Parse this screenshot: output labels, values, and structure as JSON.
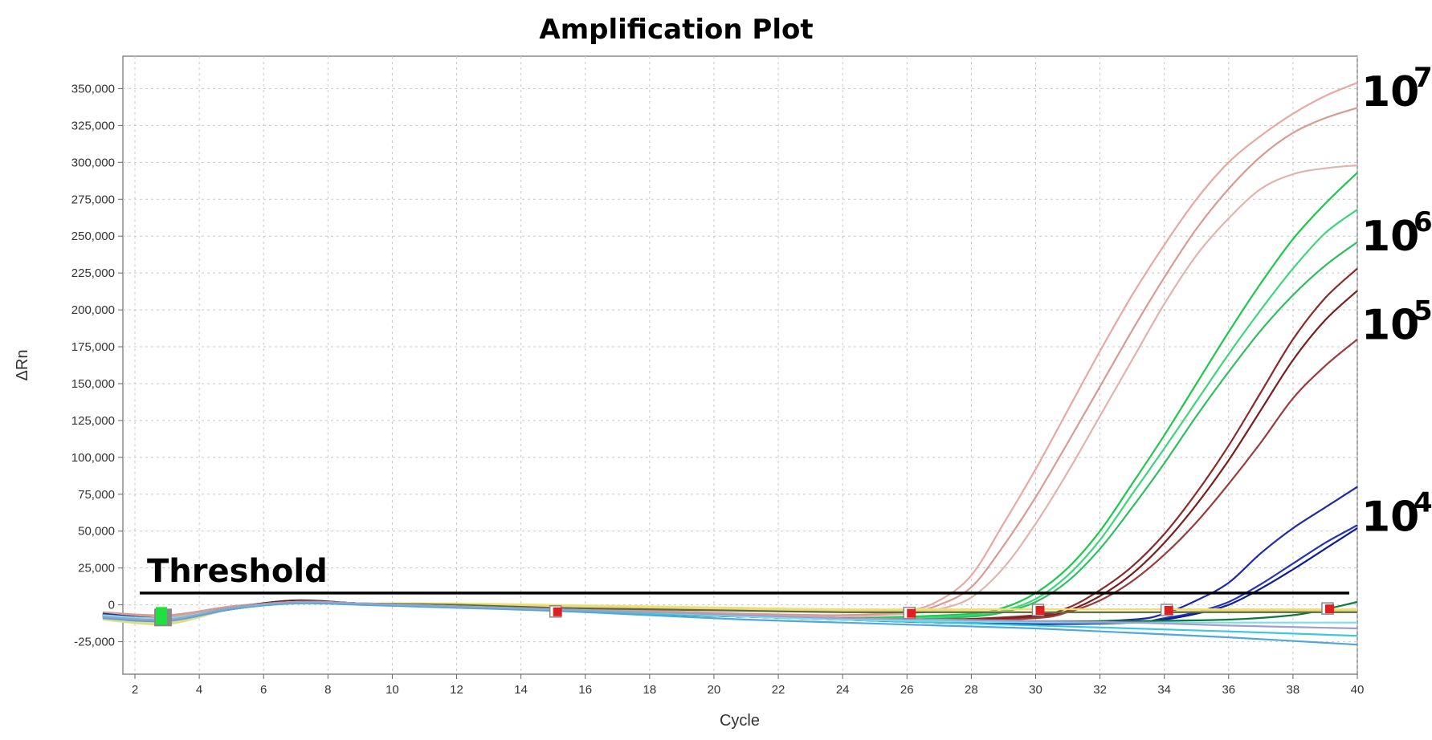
{
  "chart_data": {
    "type": "line",
    "title": "Amplification Plot",
    "xlabel": "Cycle",
    "ylabel": "ΔRn",
    "xlim": [
      1,
      40
    ],
    "ylim": [
      -47000,
      372000
    ],
    "x_ticks": [
      2,
      4,
      6,
      8,
      10,
      12,
      14,
      16,
      18,
      20,
      22,
      24,
      26,
      28,
      30,
      32,
      34,
      36,
      38,
      40
    ],
    "x_tick_labels": [
      "2",
      "4",
      "6",
      "8",
      "10",
      "12",
      "14",
      "16",
      "18",
      "20",
      "22",
      "24",
      "26",
      "28",
      "30",
      "32",
      "34",
      "36",
      "38",
      "40"
    ],
    "y_ticks": [
      -25000,
      0,
      25000,
      50000,
      75000,
      100000,
      125000,
      150000,
      175000,
      200000,
      225000,
      250000,
      275000,
      300000,
      325000,
      350000
    ],
    "y_tick_labels": [
      "-25,000",
      "0",
      "25,000",
      "50,000",
      "75,000",
      "100,000",
      "125,000",
      "150,000",
      "175,000",
      "200,000",
      "225,000",
      "250,000",
      "275,000",
      "300,000",
      "325,000",
      "350,000"
    ],
    "grid": true,
    "threshold": {
      "label": "Threshold",
      "value": 8000
    },
    "annotations": [
      {
        "base": "10",
        "exp": "7",
        "y": 348000
      },
      {
        "base": "10",
        "exp": "6",
        "y": 250000
      },
      {
        "base": "10",
        "exp": "5",
        "y": 190000
      },
      {
        "base": "10",
        "exp": "4",
        "y": 60000
      }
    ],
    "series": [
      {
        "color": "#e8a8a0",
        "x": [
          1,
          3,
          5,
          7,
          9,
          12,
          15,
          18,
          21,
          24,
          26,
          27,
          28,
          29,
          30,
          31,
          32,
          33,
          34,
          35,
          36,
          37,
          38,
          39,
          40
        ],
        "values": [
          -6000,
          -8000,
          -2000,
          2000,
          1000,
          0,
          -2000,
          -4000,
          -6000,
          -7000,
          -4000,
          3000,
          20000,
          55000,
          92000,
          132000,
          172000,
          210000,
          244000,
          275000,
          300000,
          318000,
          333000,
          345000,
          354000
        ]
      },
      {
        "color": "#d99a92",
        "x": [
          1,
          3,
          5,
          7,
          9,
          12,
          15,
          18,
          21,
          24,
          26,
          27,
          28,
          29,
          30,
          31,
          32,
          33,
          34,
          35,
          36,
          37,
          38,
          39,
          40
        ],
        "values": [
          -5000,
          -7000,
          -1000,
          2000,
          1000,
          0,
          -2000,
          -4000,
          -6000,
          -7000,
          -5000,
          0,
          12000,
          40000,
          73000,
          110000,
          148000,
          186000,
          222000,
          255000,
          282000,
          304000,
          320000,
          330000,
          337000
        ]
      },
      {
        "color": "#e2b2ac",
        "x": [
          1,
          3,
          5,
          7,
          9,
          12,
          15,
          18,
          21,
          24,
          26,
          27,
          28,
          29,
          30,
          31,
          32,
          33,
          34,
          35,
          36,
          37,
          38,
          39,
          40
        ],
        "values": [
          -7000,
          -9000,
          -2000,
          2000,
          1000,
          -1000,
          -3000,
          -5000,
          -7000,
          -8000,
          -6000,
          -3000,
          5000,
          25000,
          55000,
          90000,
          128000,
          166000,
          204000,
          237000,
          262000,
          282000,
          292000,
          296000,
          298000
        ]
      },
      {
        "color": "#1ec84a",
        "x": [
          1,
          3,
          5,
          7,
          9,
          12,
          15,
          18,
          21,
          24,
          26,
          28,
          29,
          30,
          31,
          32,
          33,
          34,
          35,
          36,
          37,
          38,
          39,
          40
        ],
        "values": [
          -6000,
          -9000,
          -2000,
          2000,
          1000,
          -1000,
          -3000,
          -6000,
          -8000,
          -9000,
          -8000,
          -6000,
          -2000,
          8000,
          25000,
          50000,
          82000,
          115000,
          150000,
          185000,
          218000,
          248000,
          272000,
          293000
        ]
      },
      {
        "color": "#3cd67a",
        "x": [
          1,
          3,
          5,
          7,
          9,
          12,
          15,
          18,
          21,
          24,
          26,
          28,
          29,
          30,
          31,
          32,
          33,
          34,
          35,
          36,
          37,
          38,
          39,
          40
        ],
        "values": [
          -7000,
          -10000,
          -2000,
          2000,
          1000,
          -1000,
          -3000,
          -6000,
          -8000,
          -9000,
          -9000,
          -7000,
          -4000,
          4000,
          20000,
          44000,
          75000,
          106000,
          138000,
          170000,
          200000,
          228000,
          252000,
          268000
        ]
      },
      {
        "color": "#2fbf60",
        "x": [
          1,
          3,
          5,
          7,
          9,
          12,
          15,
          18,
          21,
          24,
          26,
          28,
          29,
          30,
          31,
          32,
          33,
          34,
          35,
          36,
          37,
          38,
          39,
          40
        ],
        "values": [
          -8000,
          -11000,
          -3000,
          2000,
          1000,
          -1000,
          -3000,
          -6000,
          -8000,
          -10000,
          -10000,
          -8000,
          -5000,
          2000,
          16000,
          38000,
          66000,
          96000,
          128000,
          158000,
          186000,
          210000,
          230000,
          246000
        ]
      },
      {
        "color": "#8b2a2a",
        "x": [
          1,
          3,
          5,
          7,
          9,
          12,
          15,
          18,
          21,
          24,
          27,
          30,
          31,
          32,
          33,
          34,
          35,
          36,
          37,
          38,
          39,
          40
        ],
        "values": [
          -6000,
          -9000,
          -2000,
          3000,
          1000,
          -1000,
          -3000,
          -6000,
          -8000,
          -9000,
          -10000,
          -7000,
          -2000,
          10000,
          26000,
          48000,
          76000,
          108000,
          144000,
          180000,
          208000,
          228000
        ]
      },
      {
        "color": "#7a1f1f",
        "x": [
          1,
          3,
          5,
          7,
          9,
          12,
          15,
          18,
          21,
          24,
          27,
          30,
          31,
          32,
          33,
          34,
          35,
          36,
          37,
          38,
          39,
          40
        ],
        "values": [
          -7000,
          -10000,
          -2000,
          3000,
          1000,
          -1000,
          -3000,
          -6000,
          -8000,
          -10000,
          -11000,
          -8000,
          -4000,
          6000,
          21000,
          42000,
          68000,
          98000,
          132000,
          166000,
          193000,
          213000
        ]
      },
      {
        "color": "#9c3b3b",
        "x": [
          1,
          3,
          5,
          7,
          9,
          12,
          15,
          18,
          21,
          24,
          27,
          30,
          31,
          32,
          33,
          34,
          35,
          36,
          37,
          38,
          39,
          40
        ],
        "values": [
          -8000,
          -11000,
          -3000,
          2000,
          1000,
          -1000,
          -3000,
          -6000,
          -8000,
          -10000,
          -11000,
          -9000,
          -5000,
          3000,
          16000,
          34000,
          56000,
          82000,
          110000,
          140000,
          162000,
          180000
        ]
      },
      {
        "color": "#1e2aa8",
        "x": [
          1,
          3,
          5,
          7,
          9,
          12,
          15,
          18,
          21,
          24,
          27,
          30,
          33,
          34,
          35,
          36,
          37,
          38,
          39,
          40
        ],
        "values": [
          -6000,
          -9000,
          -2000,
          2000,
          1000,
          -1000,
          -3000,
          -6000,
          -8000,
          -9000,
          -11000,
          -12000,
          -10000,
          -6000,
          3000,
          15000,
          35000,
          52000,
          66000,
          80000
        ]
      },
      {
        "color": "#2533b8",
        "x": [
          1,
          3,
          5,
          7,
          9,
          12,
          15,
          18,
          21,
          24,
          27,
          30,
          33,
          34,
          35,
          36,
          37,
          38,
          39,
          40
        ],
        "values": [
          -7000,
          -10000,
          -2000,
          2000,
          1000,
          -1000,
          -3000,
          -6000,
          -8000,
          -10000,
          -12000,
          -13000,
          -12000,
          -9000,
          -5000,
          2000,
          14000,
          28000,
          42000,
          54000
        ]
      },
      {
        "color": "#0e1c98",
        "x": [
          1,
          3,
          5,
          7,
          9,
          12,
          15,
          18,
          21,
          24,
          27,
          30,
          33,
          34,
          35,
          36,
          37,
          38,
          39,
          40
        ],
        "values": [
          -8000,
          -11000,
          -3000,
          2000,
          1000,
          -1000,
          -3000,
          -6000,
          -8000,
          -10000,
          -12000,
          -13000,
          -12000,
          -10000,
          -6000,
          0,
          11000,
          24000,
          38000,
          52000
        ]
      },
      {
        "color": "#0e7a3a",
        "x": [
          1,
          3,
          5,
          7,
          9,
          12,
          15,
          18,
          21,
          24,
          27,
          30,
          33,
          36,
          38,
          39,
          40
        ],
        "values": [
          -7000,
          -9000,
          -2000,
          2000,
          1000,
          -1000,
          -3000,
          -6000,
          -8000,
          -9000,
          -10000,
          -11000,
          -11000,
          -10000,
          -7000,
          -3000,
          2000
        ]
      },
      {
        "color": "#f0e070",
        "x": [
          1,
          3,
          5,
          7,
          9,
          12,
          15,
          18,
          21,
          24,
          27,
          30,
          33,
          36,
          40
        ],
        "values": [
          -9000,
          -12000,
          -2000,
          2000,
          1000,
          1000,
          0,
          -1000,
          -2000,
          -3000,
          -3000,
          -3000,
          -3000,
          -3000,
          -3000
        ]
      },
      {
        "color": "#e6d88a",
        "x": [
          1,
          3,
          5,
          7,
          9,
          12,
          15,
          18,
          21,
          24,
          27,
          30,
          33,
          36,
          40
        ],
        "values": [
          -10000,
          -13000,
          -3000,
          1000,
          1000,
          0,
          -1000,
          -2000,
          -3000,
          -4000,
          -4000,
          -5000,
          -5000,
          -4000,
          -4000
        ]
      },
      {
        "color": "#5a6a3a",
        "x": [
          1,
          3,
          5,
          7,
          9,
          12,
          15,
          18,
          21,
          24,
          27,
          30,
          33,
          36,
          40
        ],
        "values": [
          -8000,
          -10000,
          -2000,
          2000,
          1000,
          0,
          -2000,
          -3000,
          -4000,
          -5000,
          -5000,
          -5000,
          -5000,
          -5000,
          -5000
        ]
      },
      {
        "color": "#38c8e0",
        "x": [
          1,
          3,
          5,
          7,
          9,
          12,
          15,
          18,
          21,
          24,
          27,
          30,
          33,
          36,
          40
        ],
        "values": [
          -8000,
          -10000,
          -2000,
          2000,
          1000,
          -1000,
          -3000,
          -6000,
          -8000,
          -10000,
          -12000,
          -14000,
          -16000,
          -18000,
          -21000
        ]
      },
      {
        "color": "#4fa8d8",
        "x": [
          1,
          3,
          5,
          7,
          9,
          12,
          15,
          18,
          21,
          24,
          27,
          30,
          33,
          36,
          40
        ],
        "values": [
          -9000,
          -11000,
          -3000,
          1000,
          0,
          -2000,
          -4000,
          -7000,
          -10000,
          -12000,
          -14000,
          -16000,
          -19000,
          -22000,
          -27000
        ]
      },
      {
        "color": "#7fdcec",
        "x": [
          1,
          3,
          5,
          7,
          9,
          12,
          15,
          18,
          21,
          24,
          27,
          30,
          33,
          36,
          40
        ],
        "values": [
          -7000,
          -9000,
          -2000,
          2000,
          1000,
          -1000,
          -3000,
          -5000,
          -8000,
          -10000,
          -11000,
          -12000,
          -12000,
          -12000,
          -12000
        ]
      },
      {
        "color": "#9ea0c8",
        "x": [
          1,
          3,
          5,
          7,
          9,
          12,
          15,
          18,
          21,
          24,
          27,
          30,
          33,
          36,
          40
        ],
        "values": [
          -8000,
          -10000,
          -2000,
          2000,
          1000,
          -1000,
          -3000,
          -5000,
          -7000,
          -9000,
          -10000,
          -11000,
          -12000,
          -14000,
          -16000
        ]
      }
    ],
    "markers": [
      {
        "x": 2.9,
        "y": -8000,
        "color": "#20e040",
        "size": "large"
      },
      {
        "x": 15.1,
        "y": -5000,
        "color": "#e02020"
      },
      {
        "x": 26.1,
        "y": -6000,
        "color": "#e02020"
      },
      {
        "x": 30.1,
        "y": -4000,
        "color": "#e02020"
      },
      {
        "x": 34.1,
        "y": -4000,
        "color": "#e02020"
      },
      {
        "x": 39.1,
        "y": -3000,
        "color": "#e02020"
      }
    ]
  }
}
